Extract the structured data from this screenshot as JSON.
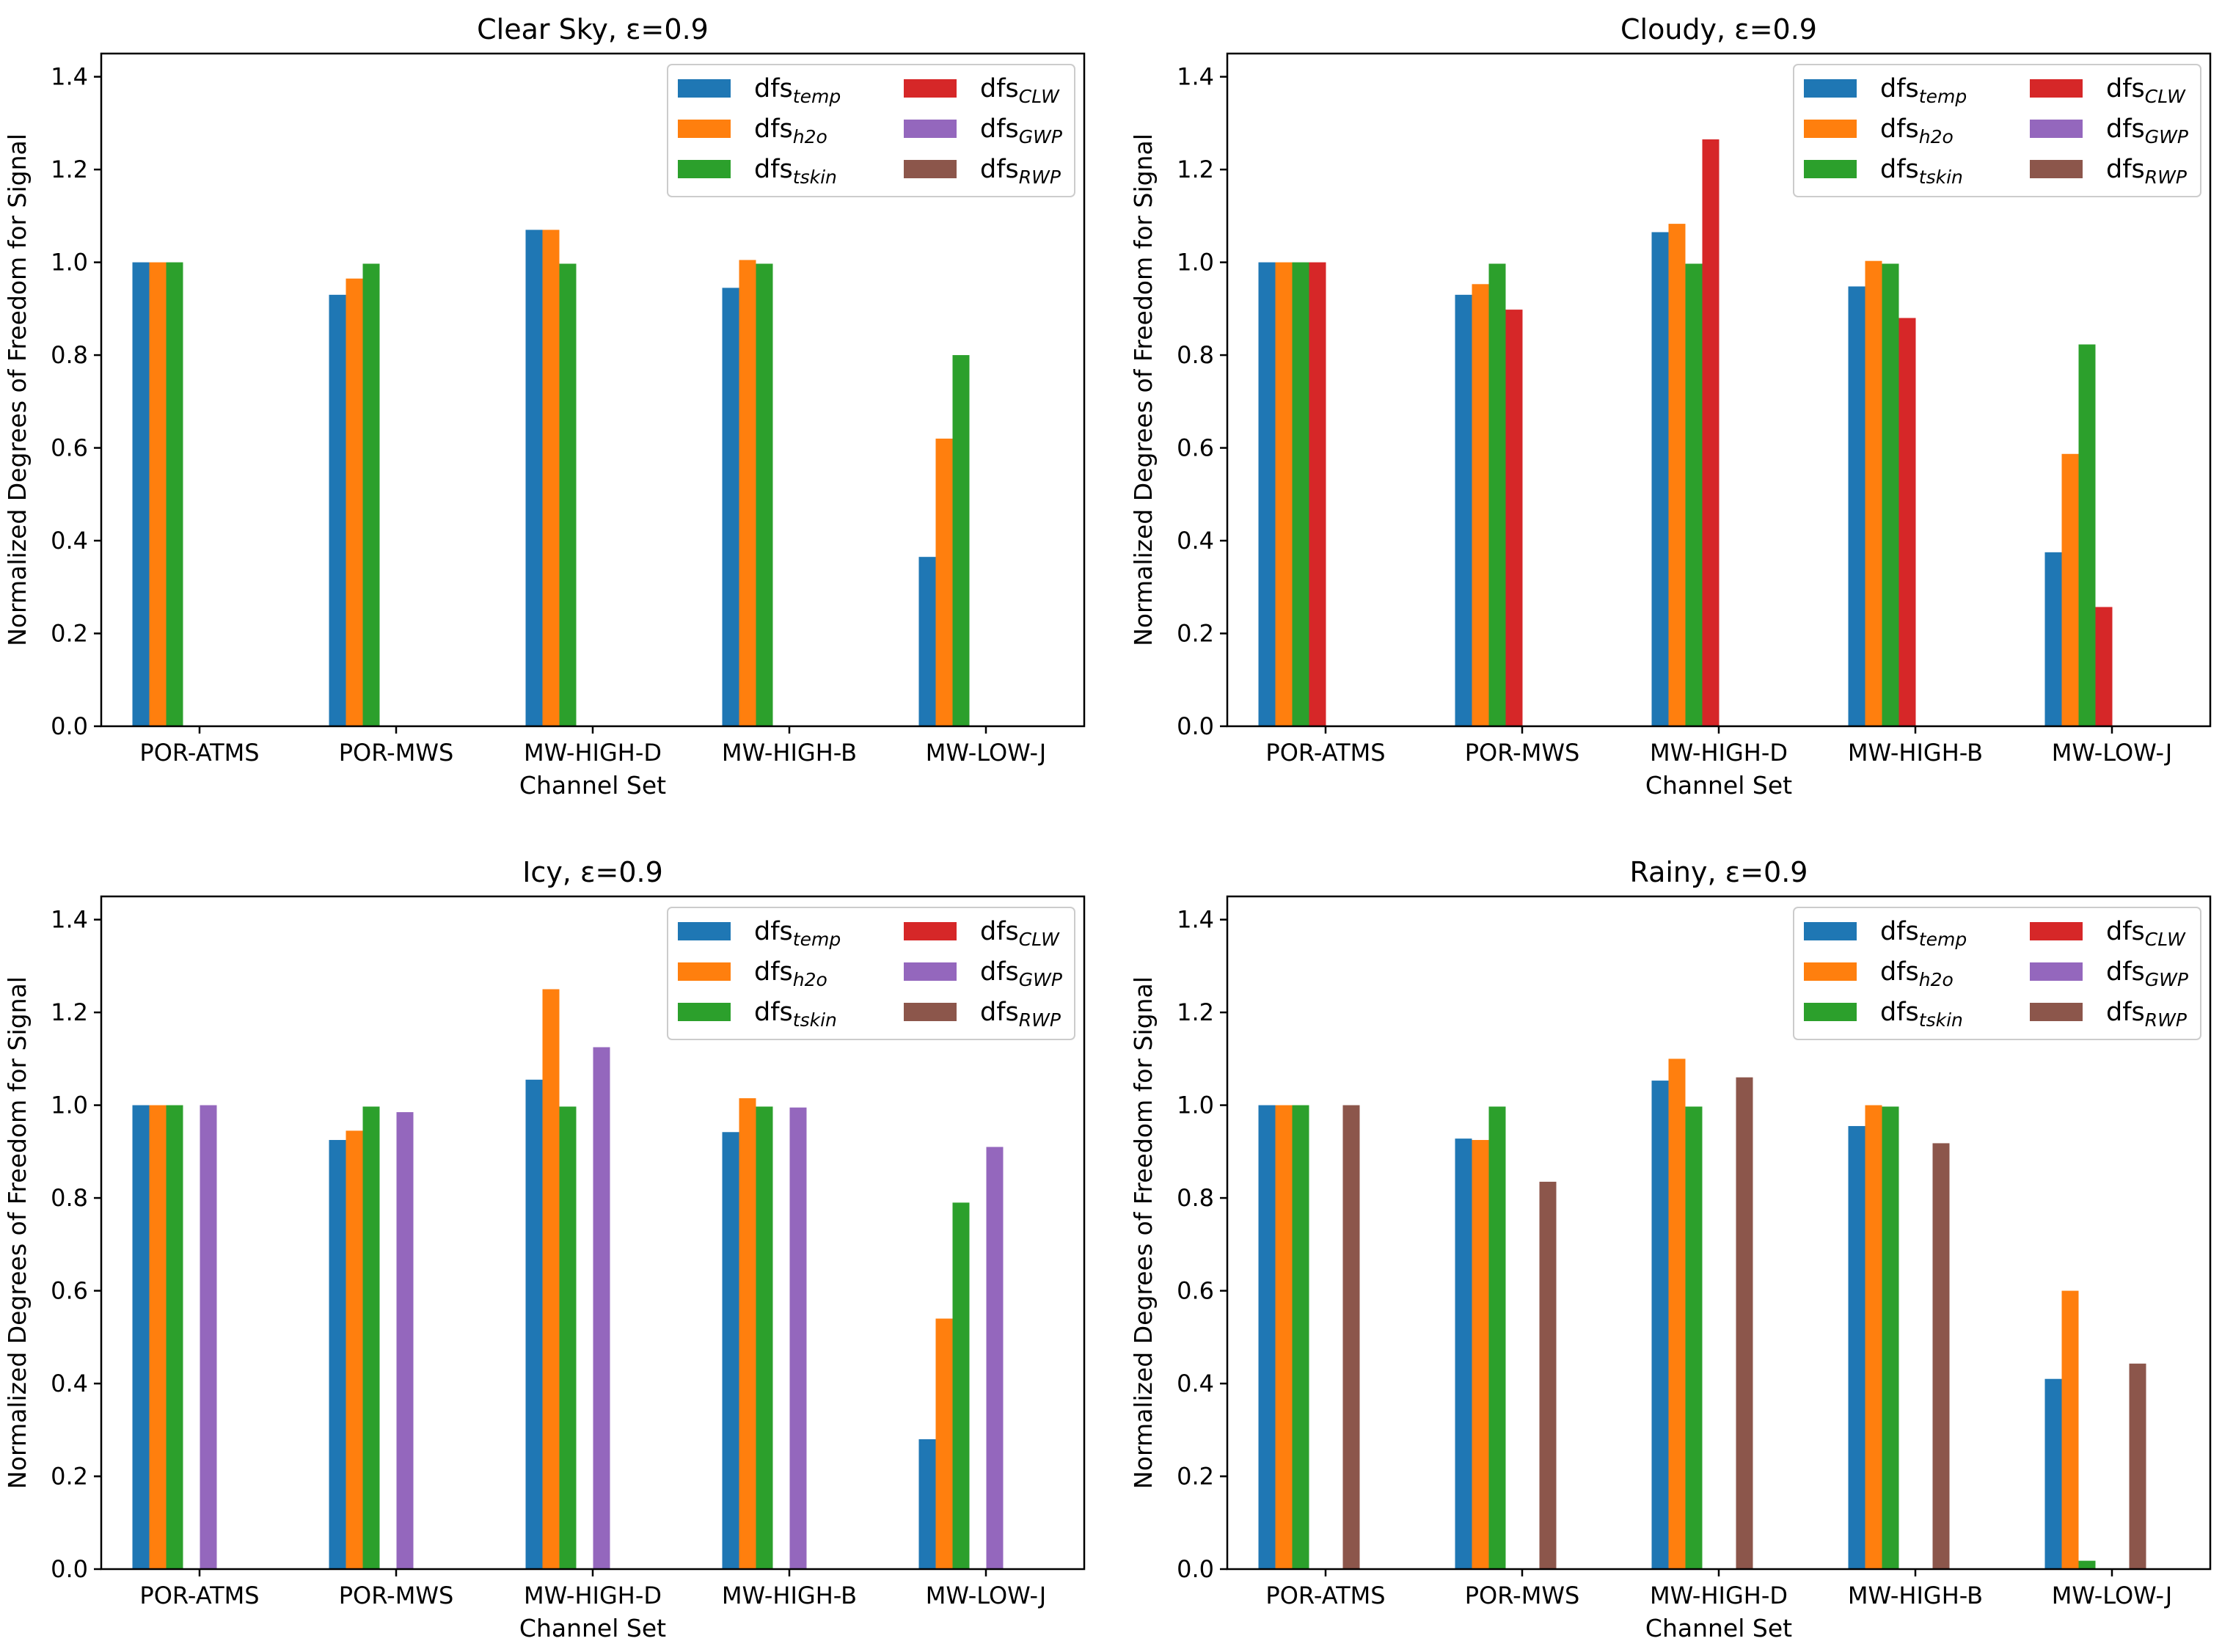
{
  "chart_data": [
    {
      "type": "bar",
      "title": "Clear Sky, ε=0.9",
      "xlabel": "Channel Set",
      "ylabel": "Normalized Degrees of Freedom for Signal",
      "ylim": [
        0,
        1.45
      ],
      "yticks": [
        "0.0",
        "0.2",
        "0.4",
        "0.6",
        "0.8",
        "1.0",
        "1.2",
        "1.4"
      ],
      "categories": [
        "POR-ATMS",
        "POR-MWS",
        "MW-HIGH-D",
        "MW-HIGH-B",
        "MW-LOW-J"
      ],
      "grid": false,
      "legend_position": "top-right",
      "series": [
        {
          "name": "dfs",
          "sub": "temp",
          "color": "#1f77b4",
          "values": [
            1.0,
            0.93,
            1.07,
            0.945,
            0.365
          ]
        },
        {
          "name": "dfs",
          "sub": "h2o",
          "color": "#ff7f0e",
          "values": [
            1.0,
            0.965,
            1.07,
            1.005,
            0.62
          ]
        },
        {
          "name": "dfs",
          "sub": "tskin",
          "color": "#2ca02c",
          "values": [
            1.0,
            0.997,
            0.997,
            0.997,
            0.8
          ]
        },
        {
          "name": "dfs",
          "sub": "CLW",
          "color": "#d62728",
          "values": [
            0,
            0,
            0,
            0,
            0
          ]
        },
        {
          "name": "dfs",
          "sub": "GWP",
          "color": "#9467bd",
          "values": [
            0,
            0,
            0,
            0,
            0
          ]
        },
        {
          "name": "dfs",
          "sub": "RWP",
          "color": "#8c564b",
          "values": [
            0,
            0,
            0,
            0,
            0
          ]
        }
      ]
    },
    {
      "type": "bar",
      "title": "Cloudy, ε=0.9",
      "xlabel": "Channel Set",
      "ylabel": "Normalized Degrees of Freedom for Signal",
      "ylim": [
        0,
        1.45
      ],
      "yticks": [
        "0.0",
        "0.2",
        "0.4",
        "0.6",
        "0.8",
        "1.0",
        "1.2",
        "1.4"
      ],
      "categories": [
        "POR-ATMS",
        "POR-MWS",
        "MW-HIGH-D",
        "MW-HIGH-B",
        "MW-LOW-J"
      ],
      "grid": false,
      "legend_position": "top-right",
      "series": [
        {
          "name": "dfs",
          "sub": "temp",
          "color": "#1f77b4",
          "values": [
            1.0,
            0.93,
            1.065,
            0.948,
            0.375
          ]
        },
        {
          "name": "dfs",
          "sub": "h2o",
          "color": "#ff7f0e",
          "values": [
            1.0,
            0.953,
            1.083,
            1.003,
            0.587
          ]
        },
        {
          "name": "dfs",
          "sub": "tskin",
          "color": "#2ca02c",
          "values": [
            1.0,
            0.997,
            0.997,
            0.997,
            0.823
          ]
        },
        {
          "name": "dfs",
          "sub": "CLW",
          "color": "#d62728",
          "values": [
            1.0,
            0.898,
            1.265,
            0.88,
            0.257
          ]
        },
        {
          "name": "dfs",
          "sub": "GWP",
          "color": "#9467bd",
          "values": [
            0,
            0,
            0,
            0,
            0
          ]
        },
        {
          "name": "dfs",
          "sub": "RWP",
          "color": "#8c564b",
          "values": [
            0,
            0,
            0,
            0,
            0
          ]
        }
      ]
    },
    {
      "type": "bar",
      "title": "Icy, ε=0.9",
      "xlabel": "Channel Set",
      "ylabel": "Normalized Degrees of Freedom for Signal",
      "ylim": [
        0,
        1.45
      ],
      "yticks": [
        "0.0",
        "0.2",
        "0.4",
        "0.6",
        "0.8",
        "1.0",
        "1.2",
        "1.4"
      ],
      "categories": [
        "POR-ATMS",
        "POR-MWS",
        "MW-HIGH-D",
        "MW-HIGH-B",
        "MW-LOW-J"
      ],
      "grid": false,
      "legend_position": "top-right",
      "series": [
        {
          "name": "dfs",
          "sub": "temp",
          "color": "#1f77b4",
          "values": [
            1.0,
            0.925,
            1.055,
            0.942,
            0.28
          ]
        },
        {
          "name": "dfs",
          "sub": "h2o",
          "color": "#ff7f0e",
          "values": [
            1.0,
            0.945,
            1.25,
            1.015,
            0.54
          ]
        },
        {
          "name": "dfs",
          "sub": "tskin",
          "color": "#2ca02c",
          "values": [
            1.0,
            0.997,
            0.997,
            0.997,
            0.79
          ]
        },
        {
          "name": "dfs",
          "sub": "CLW",
          "color": "#d62728",
          "values": [
            0,
            0,
            0,
            0,
            0
          ]
        },
        {
          "name": "dfs",
          "sub": "GWP",
          "color": "#9467bd",
          "values": [
            1.0,
            0.985,
            1.125,
            0.995,
            0.91
          ]
        },
        {
          "name": "dfs",
          "sub": "RWP",
          "color": "#8c564b",
          "values": [
            0,
            0,
            0,
            0,
            0
          ]
        }
      ]
    },
    {
      "type": "bar",
      "title": "Rainy, ε=0.9",
      "xlabel": "Channel Set",
      "ylabel": "Normalized Degrees of Freedom for Signal",
      "ylim": [
        0,
        1.45
      ],
      "yticks": [
        "0.0",
        "0.2",
        "0.4",
        "0.6",
        "0.8",
        "1.0",
        "1.2",
        "1.4"
      ],
      "categories": [
        "POR-ATMS",
        "POR-MWS",
        "MW-HIGH-D",
        "MW-HIGH-B",
        "MW-LOW-J"
      ],
      "grid": false,
      "legend_position": "top-right",
      "series": [
        {
          "name": "dfs",
          "sub": "temp",
          "color": "#1f77b4",
          "values": [
            1.0,
            0.928,
            1.053,
            0.955,
            0.41
          ]
        },
        {
          "name": "dfs",
          "sub": "h2o",
          "color": "#ff7f0e",
          "values": [
            1.0,
            0.925,
            1.1,
            1.0,
            0.6
          ]
        },
        {
          "name": "dfs",
          "sub": "tskin",
          "color": "#2ca02c",
          "values": [
            1.0,
            0.997,
            0.997,
            0.997,
            0.018
          ]
        },
        {
          "name": "dfs",
          "sub": "CLW",
          "color": "#d62728",
          "values": [
            0,
            0,
            0,
            0,
            0
          ]
        },
        {
          "name": "dfs",
          "sub": "GWP",
          "color": "#9467bd",
          "values": [
            0,
            0,
            0,
            0,
            0
          ]
        },
        {
          "name": "dfs",
          "sub": "RWP",
          "color": "#8c564b",
          "values": [
            1.0,
            0.835,
            1.06,
            0.918,
            0.443
          ]
        }
      ]
    }
  ]
}
